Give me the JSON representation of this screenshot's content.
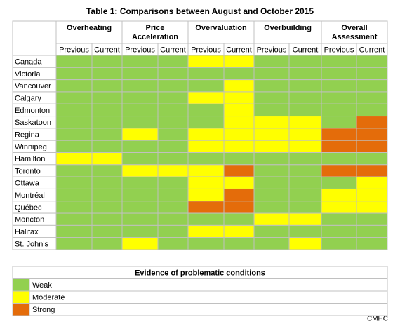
{
  "title": "Table 1: Comparisons between August and October 2015",
  "groups": [
    "Overheating",
    "Price Acceleration",
    "Overvaluation",
    "Overbuilding",
    "Overall Assessment"
  ],
  "subheaders": [
    "Previous",
    "Current"
  ],
  "level_colors": [
    "#92d050",
    "#ffff00",
    "#e46c0a"
  ],
  "rows": [
    {
      "city": "Canada",
      "levels": [
        0,
        0,
        0,
        0,
        1,
        1,
        0,
        0,
        0,
        0
      ]
    },
    {
      "city": "Victoria",
      "levels": [
        0,
        0,
        0,
        0,
        0,
        0,
        0,
        0,
        0,
        0
      ]
    },
    {
      "city": "Vancouver",
      "levels": [
        0,
        0,
        0,
        0,
        0,
        1,
        0,
        0,
        0,
        0
      ]
    },
    {
      "city": "Calgary",
      "levels": [
        0,
        0,
        0,
        0,
        1,
        1,
        0,
        0,
        0,
        0
      ]
    },
    {
      "city": "Edmonton",
      "levels": [
        0,
        0,
        0,
        0,
        0,
        1,
        0,
        0,
        0,
        0
      ]
    },
    {
      "city": "Saskatoon",
      "levels": [
        0,
        0,
        0,
        0,
        0,
        1,
        1,
        1,
        0,
        2
      ]
    },
    {
      "city": "Regina",
      "levels": [
        0,
        0,
        1,
        0,
        1,
        1,
        1,
        1,
        2,
        2
      ]
    },
    {
      "city": "Winnipeg",
      "levels": [
        0,
        0,
        0,
        0,
        1,
        1,
        1,
        1,
        2,
        2
      ]
    },
    {
      "city": "Hamilton",
      "levels": [
        1,
        1,
        0,
        0,
        0,
        0,
        0,
        0,
        0,
        0
      ]
    },
    {
      "city": "Toronto",
      "levels": [
        0,
        0,
        1,
        1,
        1,
        2,
        0,
        0,
        2,
        2
      ]
    },
    {
      "city": "Ottawa",
      "levels": [
        0,
        0,
        0,
        0,
        1,
        1,
        0,
        0,
        0,
        1
      ]
    },
    {
      "city": "Montréal",
      "levels": [
        0,
        0,
        0,
        0,
        1,
        2,
        0,
        0,
        1,
        1
      ]
    },
    {
      "city": "Québec",
      "levels": [
        0,
        0,
        0,
        0,
        2,
        2,
        0,
        0,
        1,
        1
      ]
    },
    {
      "city": "Moncton",
      "levels": [
        0,
        0,
        0,
        0,
        0,
        0,
        1,
        1,
        0,
        0
      ]
    },
    {
      "city": "Halifax",
      "levels": [
        0,
        0,
        0,
        0,
        1,
        1,
        0,
        0,
        0,
        0
      ]
    },
    {
      "city": "St. John's",
      "levels": [
        0,
        0,
        1,
        0,
        0,
        0,
        0,
        1,
        0,
        0
      ]
    }
  ],
  "legend": {
    "title": "Evidence of problematic conditions",
    "items": [
      "Weak",
      "Moderate",
      "Strong"
    ]
  },
  "source": "CMHC"
}
